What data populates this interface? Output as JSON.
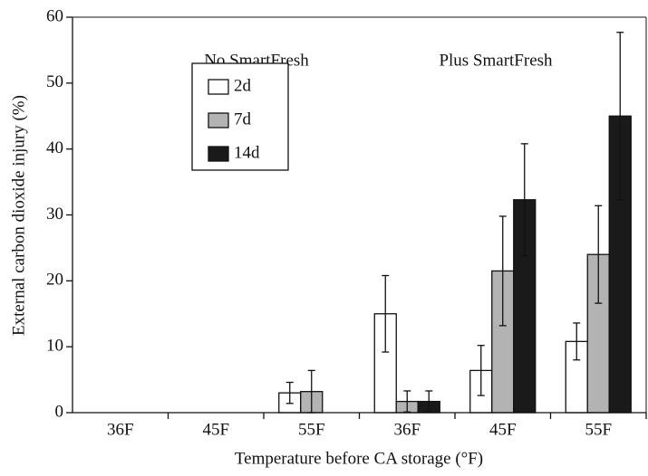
{
  "chart_data": {
    "type": "bar",
    "x_label": "Temperature before CA storage (°F)",
    "y_label": "External carbon dioxide injury (%)",
    "annotations": [
      "No SmartFresh",
      "Plus SmartFresh"
    ],
    "categories": [
      "36F",
      "45F",
      "55F",
      "36F",
      "45F",
      "55F"
    ],
    "series": [
      {
        "name": "2d",
        "color": "#ffffff",
        "values": [
          0,
          0,
          3,
          15,
          6.4,
          10.8
        ],
        "errors": [
          null,
          null,
          1.6,
          5.8,
          3.8,
          2.8
        ]
      },
      {
        "name": "7d",
        "color": "#b3b3b3",
        "values": [
          0,
          0,
          3.2,
          1.7,
          21.5,
          24
        ],
        "errors": [
          null,
          null,
          3.2,
          1.6,
          8.3,
          7.4
        ]
      },
      {
        "name": "14d",
        "color": "#1a1a1a",
        "values": [
          0,
          0,
          0,
          1.7,
          32.3,
          45
        ],
        "errors": [
          null,
          null,
          null,
          1.6,
          8.5,
          12.7
        ]
      }
    ],
    "ylim": [
      0,
      60
    ],
    "yticks": [
      0,
      10,
      20,
      30,
      40,
      50,
      60
    ]
  }
}
